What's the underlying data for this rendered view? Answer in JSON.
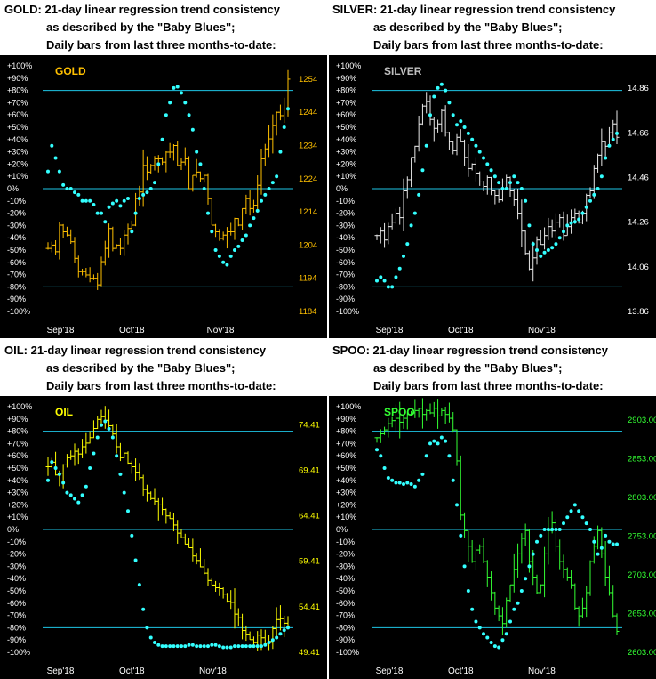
{
  "colors": {
    "background": "#000000",
    "gridline": "#1ec6e6",
    "axis_text": "#ffffff",
    "baby_blues": "#33ffff"
  },
  "chart_data": [
    {
      "id": "gold",
      "type": "line",
      "header_bg": "#ffc000",
      "bar_color": "#ffc000",
      "header_line1": "GOLD:  21-day linear regression trend consistency",
      "header_line2": "as described by the \"Baby Blues\";",
      "header_line3": "Daily bars from last three months-to-date:",
      "label": "GOLD",
      "label_color": "#ffc000",
      "right_axis_color": "#ffc000",
      "left_ticks": [
        "+100%",
        "+90%",
        "+80%",
        "+70%",
        "+60%",
        "+50%",
        "+40%",
        "+30%",
        "+20%",
        "+10%",
        "0%",
        "-10%",
        "-20%",
        "-30%",
        "-40%",
        "-50%",
        "-60%",
        "-70%",
        "-80%",
        "-90%",
        "-100%"
      ],
      "right_ticks": [
        "1254",
        "1244",
        "1234",
        "1224",
        "1214",
        "1204",
        "1194",
        "1184"
      ],
      "right_range": [
        1184,
        1258
      ],
      "x_labels": [
        {
          "text": "Sep'18",
          "i": 2
        },
        {
          "text": "Oct'18",
          "i": 21
        },
        {
          "text": "Nov'18",
          "i": 44
        }
      ],
      "num_days": 64,
      "hlines": [
        80,
        0,
        -80
      ],
      "baby_blues": [
        14,
        35,
        25,
        14,
        3,
        0,
        0,
        -3,
        -5,
        -10,
        -10,
        -10,
        -13,
        -20,
        -20,
        -27,
        -15,
        -12,
        -10,
        -14,
        -10,
        -8,
        -35,
        -20,
        -8,
        -5,
        -3,
        0,
        5,
        20,
        40,
        60,
        70,
        82,
        83,
        78,
        70,
        60,
        48,
        30,
        20,
        0,
        -20,
        -35,
        -50,
        -55,
        -60,
        -62,
        -55,
        -50,
        -47,
        -42,
        -38,
        -30,
        -24,
        -18,
        -10,
        -5,
        0,
        5,
        10,
        30,
        50,
        65
      ],
      "prices": [
        1203,
        1204,
        1202,
        1210,
        1208,
        1207,
        1205,
        1200,
        1196,
        1196,
        1195,
        1194,
        1194,
        1192,
        1199,
        1203,
        1209,
        1203,
        1204,
        1203,
        1207,
        1209,
        1210,
        1218,
        1220,
        1228,
        1226,
        1228,
        1230,
        1230,
        1229,
        1232,
        1232,
        1234,
        1228,
        1229,
        1230,
        1221,
        1225,
        1226,
        1224,
        1225,
        1218,
        1210,
        1208,
        1206,
        1207,
        1208,
        1208,
        1212,
        1210,
        1215,
        1218,
        1215,
        1216,
        1222,
        1230,
        1233,
        1236,
        1240,
        1244,
        1243,
        1245,
        1254
      ]
    },
    {
      "id": "silver",
      "type": "line",
      "header_bg": "#c0c0c0",
      "bar_color": "#e8e8e8",
      "header_line1": "SILVER:  21-day linear regression trend consistency",
      "header_line2": "as described by the \"Baby Blues\";",
      "header_line3": "Daily bars from last three months-to-date:",
      "label": "SILVER",
      "label_color": "#c0c0c0",
      "right_axis_color": "#ffffff",
      "left_ticks": [
        "+100%",
        "+90%",
        "+80%",
        "+70%",
        "+60%",
        "+50%",
        "+40%",
        "+30%",
        "+20%",
        "+10%",
        "0%",
        "-10%",
        "-20%",
        "-30%",
        "-40%",
        "-50%",
        "-60%",
        "-70%",
        "-80%",
        "-90%",
        "-100%"
      ],
      "right_ticks": [
        "14.86",
        "14.66",
        "14.46",
        "14.26",
        "14.06",
        "13.86"
      ],
      "right_range": [
        13.86,
        14.96
      ],
      "x_labels": [
        {
          "text": "Sep'18",
          "i": 2
        },
        {
          "text": "Oct'18",
          "i": 21
        },
        {
          "text": "Nov'18",
          "i": 42
        }
      ],
      "num_days": 64,
      "hlines": [
        80,
        0,
        -80
      ],
      "baby_blues": [
        -75,
        -72,
        -75,
        -80,
        -80,
        -72,
        -65,
        -55,
        -45,
        -30,
        -20,
        -5,
        15,
        35,
        60,
        75,
        82,
        85,
        80,
        70,
        60,
        52,
        55,
        50,
        45,
        40,
        35,
        30,
        25,
        20,
        15,
        10,
        5,
        0,
        0,
        5,
        10,
        5,
        0,
        -10,
        -30,
        -45,
        -50,
        -55,
        -52,
        -50,
        -48,
        -45,
        -40,
        -35,
        -30,
        -28,
        -27,
        -25,
        -20,
        -15,
        -10,
        -5,
        0,
        10,
        25,
        35,
        40,
        45
      ],
      "prices": [
        14.2,
        14.22,
        14.18,
        14.24,
        14.26,
        14.3,
        14.28,
        14.4,
        14.45,
        14.55,
        14.6,
        14.7,
        14.78,
        14.8,
        14.72,
        14.68,
        14.7,
        14.76,
        14.66,
        14.62,
        14.58,
        14.64,
        14.62,
        14.55,
        14.5,
        14.52,
        14.48,
        14.44,
        14.42,
        14.46,
        14.4,
        14.38,
        14.36,
        14.44,
        14.46,
        14.4,
        14.36,
        14.3,
        14.22,
        14.12,
        14.05,
        14.1,
        14.18,
        14.16,
        14.2,
        14.24,
        14.22,
        14.26,
        14.28,
        14.2,
        14.24,
        14.28,
        14.3,
        14.26,
        14.3,
        14.38,
        14.4,
        14.5,
        14.56,
        14.62,
        14.6,
        14.66,
        14.7,
        14.64
      ]
    },
    {
      "id": "oil",
      "type": "line",
      "header_bg": "#ffff00",
      "bar_color": "#ffff00",
      "header_line1": "OIL:  21-day linear regression trend consistency",
      "header_line2": "as described by the \"Baby Blues\";",
      "header_line3": "Daily bars from last three months-to-date:",
      "label": "OIL",
      "label_color": "#ffff00",
      "right_axis_color": "#ffff00",
      "left_ticks": [
        "+100%",
        "+90%",
        "+80%",
        "+70%",
        "+60%",
        "+50%",
        "+40%",
        "+30%",
        "+20%",
        "+10%",
        "0%",
        "-10%",
        "-20%",
        "-30%",
        "-40%",
        "-50%",
        "-60%",
        "-70%",
        "-80%",
        "-90%",
        "-100%"
      ],
      "right_ticks": [
        "74.41",
        "69.41",
        "64.41",
        "59.41",
        "54.41",
        "49.41"
      ],
      "right_range": [
        49.41,
        76.4
      ],
      "x_labels": [
        {
          "text": "Sep'18",
          "i": 2
        },
        {
          "text": "Oct'18",
          "i": 21
        },
        {
          "text": "Nov'18",
          "i": 42
        }
      ],
      "num_days": 64,
      "hlines": [
        80,
        0,
        -80
      ],
      "baby_blues": [
        40,
        55,
        50,
        45,
        38,
        30,
        28,
        25,
        22,
        28,
        35,
        50,
        62,
        75,
        85,
        88,
        82,
        75,
        60,
        45,
        30,
        15,
        -5,
        -25,
        -45,
        -65,
        -80,
        -88,
        -92,
        -94,
        -95,
        -95,
        -95,
        -95,
        -95,
        -95,
        -95,
        -94,
        -94,
        -95,
        -95,
        -95,
        -95,
        -94,
        -94,
        -95,
        -96,
        -96,
        -96,
        -95,
        -95,
        -95,
        -95,
        -95,
        -95,
        -95,
        -95,
        -94,
        -92,
        -90,
        -88,
        -85,
        -82,
        -80
      ],
      "prices": [
        69.8,
        70.3,
        68.9,
        69.1,
        70.0,
        70.8,
        71.0,
        71.5,
        71.2,
        72.0,
        72.4,
        73.0,
        74.0,
        75.0,
        75.3,
        74.9,
        74.3,
        73.4,
        72.0,
        70.8,
        71.3,
        70.2,
        69.8,
        69.2,
        68.6,
        67.3,
        66.9,
        66.3,
        66.0,
        65.6,
        65.1,
        64.4,
        64.1,
        63.4,
        62.5,
        62.0,
        61.3,
        60.9,
        60.0,
        59.5,
        58.8,
        58.1,
        57.3,
        56.8,
        56.5,
        56.4,
        55.8,
        55.0,
        54.9,
        53.6,
        53.2,
        51.8,
        51.4,
        50.8,
        50.5,
        51.3,
        51.0,
        50.4,
        50.6,
        52.0,
        53.0,
        53.1,
        52.6,
        52.3
      ]
    },
    {
      "id": "spoo",
      "type": "line",
      "header_bg": "#00e000",
      "bar_color": "#33ff33",
      "header_line1": "SPOO:  21-day linear regression trend consistency",
      "header_line2": "as described by the \"Baby Blues\";",
      "header_line3": "Daily bars from last three months-to-date:",
      "label": "SPOO",
      "label_color": "#33ff33",
      "right_axis_color": "#33ff33",
      "left_ticks": [
        "+100%",
        "+90%",
        "+80%",
        "+70%",
        "+60%",
        "+50%",
        "+40%",
        "+30%",
        "+20%",
        "+10%",
        "0%",
        "-10%",
        "-20%",
        "-30%",
        "-40%",
        "-50%",
        "-60%",
        "-70%",
        "-80%",
        "-90%",
        "-100%"
      ],
      "right_ticks": [
        "2903.00",
        "2853.00",
        "2803.00",
        "2753.00",
        "2703.00",
        "2653.00",
        "2603.00"
      ],
      "right_range": [
        2603,
        2920
      ],
      "x_labels": [
        {
          "text": "Sep'18",
          "i": 2
        },
        {
          "text": "Oct'18",
          "i": 21
        },
        {
          "text": "Nov'18",
          "i": 42
        }
      ],
      "num_days": 64,
      "hlines": [
        80,
        0,
        -80
      ],
      "baby_blues": [
        65,
        60,
        50,
        42,
        40,
        38,
        38,
        37,
        38,
        37,
        35,
        40,
        45,
        60,
        70,
        72,
        70,
        75,
        72,
        60,
        40,
        20,
        -5,
        -30,
        -50,
        -65,
        -75,
        -80,
        -85,
        -88,
        -92,
        -95,
        -96,
        -90,
        -85,
        -75,
        -65,
        -60,
        -50,
        -40,
        -30,
        -20,
        -10,
        -5,
        0,
        0,
        0,
        0,
        0,
        5,
        10,
        15,
        20,
        15,
        10,
        5,
        0,
        -10,
        -20,
        -15,
        -5,
        -10,
        -12,
        -12
      ],
      "prices": [
        2880,
        2885,
        2890,
        2898,
        2902,
        2905,
        2900,
        2905,
        2910,
        2912,
        2915,
        2918,
        2910,
        2915,
        2912,
        2918,
        2908,
        2915,
        2910,
        2905,
        2890,
        2850,
        2780,
        2760,
        2740,
        2720,
        2735,
        2740,
        2720,
        2700,
        2680,
        2660,
        2650,
        2640,
        2670,
        2690,
        2710,
        2730,
        2750,
        2760,
        2720,
        2700,
        2680,
        2690,
        2730,
        2760,
        2770,
        2740,
        2720,
        2710,
        2700,
        2690,
        2660,
        2650,
        2660,
        2680,
        2720,
        2740,
        2760,
        2730,
        2700,
        2680,
        2650,
        2630
      ]
    }
  ]
}
